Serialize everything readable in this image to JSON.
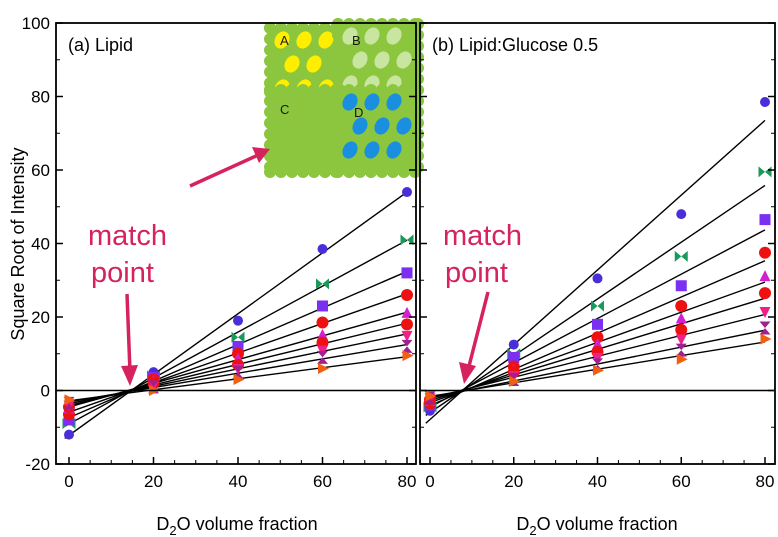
{
  "colors": {
    "purple": "#4a2fd8",
    "teal": "#1a9a5a",
    "violet": "#7b2ff0",
    "red": "#ee1111",
    "magenta": "#d020d0",
    "pink": "#f0208a",
    "plum": "#a02090",
    "orange": "#f06010",
    "callout": "#d6225f",
    "inset_green": "#8cc63f",
    "inset_yellow": "#ffee00",
    "inset_lightgreen": "#c8e6a0",
    "inset_blue": "#1a8fe0"
  },
  "inset": {
    "labels": [
      "A",
      "B",
      "C",
      "D"
    ]
  },
  "chart_data": [
    {
      "type": "scatter",
      "title": "(a) Lipid",
      "xlabel": "D2O volume fraction",
      "ylabel": "Square Root of Intensity",
      "xlim": [
        -1,
        82
      ],
      "ylim": [
        -20,
        100
      ],
      "xticks": [
        0,
        20,
        40,
        60,
        80
      ],
      "yticks": [
        -20,
        0,
        20,
        40,
        60,
        80,
        100
      ],
      "annotation": {
        "line1": "match",
        "line2": "point"
      },
      "series": [
        {
          "marker": "circle",
          "color": "#4a2fd8",
          "x": [
            0,
            20,
            40,
            60,
            80
          ],
          "y": [
            -12,
            5,
            19,
            38.5,
            54
          ]
        },
        {
          "marker": "bowtie",
          "color": "#1a9a5a",
          "x": [
            0,
            20,
            40,
            60,
            80
          ],
          "y": [
            -9,
            4,
            14.5,
            29,
            41
          ]
        },
        {
          "marker": "square",
          "color": "#7b2ff0",
          "x": [
            0,
            20,
            40,
            60,
            80
          ],
          "y": [
            -8,
            3.5,
            12,
            23,
            32
          ]
        },
        {
          "marker": "circle",
          "color": "#ee1111",
          "x": [
            0,
            20,
            40,
            60,
            80
          ],
          "y": [
            -6.5,
            3,
            10,
            18.5,
            26
          ]
        },
        {
          "marker": "triangle-up",
          "color": "#d020d0",
          "x": [
            0,
            20,
            40,
            60,
            80
          ],
          "y": [
            -5,
            2.5,
            8.5,
            15,
            21
          ]
        },
        {
          "marker": "circle",
          "color": "#ee1111",
          "x": [
            0,
            20,
            40,
            60,
            80
          ],
          "y": [
            -4.5,
            2,
            7,
            13,
            18
          ]
        },
        {
          "marker": "triangle-down",
          "color": "#f0208a",
          "x": [
            0,
            20,
            40,
            60,
            80
          ],
          "y": [
            -4,
            1.5,
            6,
            11,
            15
          ]
        },
        {
          "marker": "bowtie-left",
          "color": "#a02090",
          "x": [
            0,
            20,
            40,
            60,
            80
          ],
          "y": [
            -3.5,
            1,
            5,
            9,
            12
          ]
        },
        {
          "marker": "triangle-right",
          "color": "#f06010",
          "x": [
            0,
            20,
            40,
            60,
            80
          ],
          "y": [
            -2.5,
            0,
            3,
            6,
            9.5
          ]
        }
      ]
    },
    {
      "type": "scatter",
      "title": "(b) Lipid:Glucose 0.5",
      "xlabel": "D2O volume fraction",
      "xlim": [
        -1,
        82
      ],
      "ylim": [
        -20,
        100
      ],
      "xticks": [
        0,
        20,
        40,
        60,
        80
      ],
      "annotation": {
        "line1": "match",
        "line2": "point"
      },
      "series": [
        {
          "marker": "circle",
          "color": "#4a2fd8",
          "x": [
            0,
            20,
            40,
            60,
            80
          ],
          "y": [
            -5.5,
            12.5,
            30.5,
            48,
            78.5
          ]
        },
        {
          "marker": "bowtie",
          "color": "#1a9a5a",
          "x": [
            0,
            20,
            40,
            60,
            80
          ],
          "y": [
            -4.5,
            10,
            23,
            36.5,
            59.5
          ]
        },
        {
          "marker": "square",
          "color": "#7b2ff0",
          "x": [
            0,
            20,
            40,
            60,
            80
          ],
          "y": [
            -4,
            9,
            18,
            28.5,
            46.5
          ]
        },
        {
          "marker": "circle",
          "color": "#ee1111",
          "x": [
            0,
            20,
            40,
            60,
            80
          ],
          "y": [
            -3.5,
            6.5,
            14.5,
            23,
            37.5
          ]
        },
        {
          "marker": "triangle-up",
          "color": "#d020d0",
          "x": [
            0,
            20,
            40,
            60,
            80
          ],
          "y": [
            -3,
            5.5,
            12.5,
            19.5,
            31
          ]
        },
        {
          "marker": "circle",
          "color": "#ee1111",
          "x": [
            0,
            20,
            40,
            60,
            80
          ],
          "y": [
            -2.5,
            5,
            10.5,
            16.5,
            26.5
          ]
        },
        {
          "marker": "triangle-down",
          "color": "#f0208a",
          "x": [
            0,
            20,
            40,
            60,
            80
          ],
          "y": [
            -2,
            4,
            9,
            14,
            21.5
          ]
        },
        {
          "marker": "bowtie-left",
          "color": "#a02090",
          "x": [
            0,
            20,
            40,
            60,
            80
          ],
          "y": [
            -2,
            3,
            7,
            11,
            17
          ]
        },
        {
          "marker": "triangle-right",
          "color": "#f06010",
          "x": [
            0,
            20,
            40,
            60,
            80
          ],
          "y": [
            -1.5,
            2.5,
            5.5,
            8.5,
            14
          ]
        }
      ]
    }
  ]
}
